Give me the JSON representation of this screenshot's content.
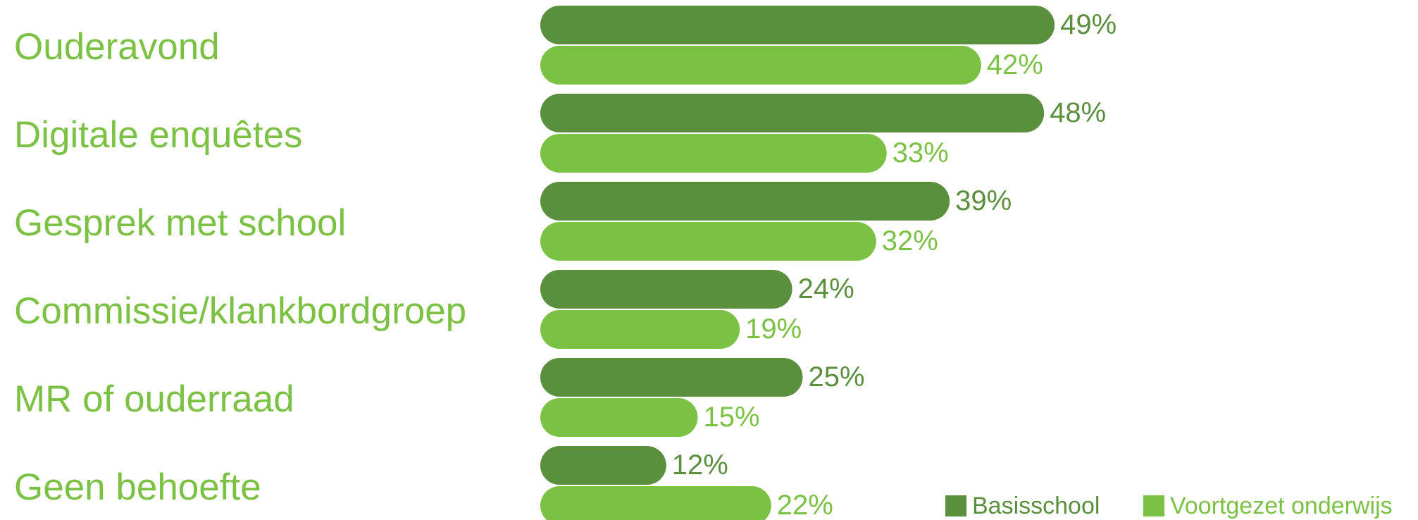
{
  "chart_data": {
    "type": "bar",
    "orientation": "horizontal",
    "categories": [
      "Ouderavond",
      "Digitale enquêtes",
      "Gesprek met school",
      "Commissie/klankbordgroep",
      "MR of ouderraad",
      "Geen behoefte"
    ],
    "series": [
      {
        "name": "Basisschool",
        "values": [
          49,
          48,
          39,
          24,
          25,
          12
        ],
        "labels": [
          "49%",
          "48%",
          "39%",
          "24%",
          "25%",
          "12%"
        ],
        "color": "#5a8f3e"
      },
      {
        "name": "Voortgezet onderwijs",
        "values": [
          42,
          33,
          32,
          19,
          15,
          22
        ],
        "labels": [
          "42%",
          "33%",
          "32%",
          "19%",
          "15%",
          "22%"
        ],
        "color": "#7bc144"
      }
    ],
    "value_unit": "%",
    "xlim": [
      0,
      49
    ],
    "category_label_color": "#7bc144",
    "grid": false,
    "legend_position": "bottom-right"
  }
}
